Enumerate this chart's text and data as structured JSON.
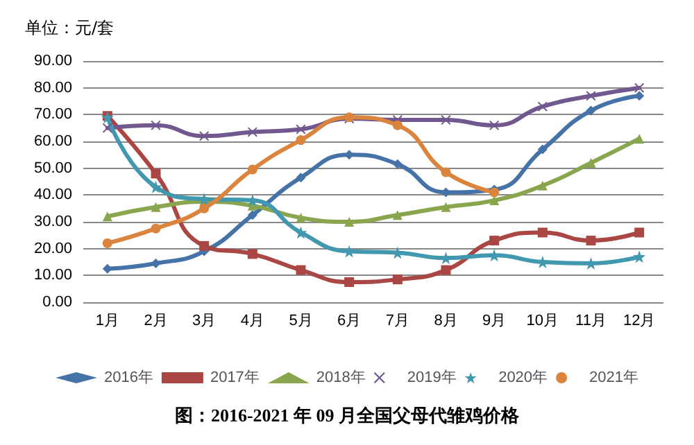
{
  "chart_data": {
    "type": "line",
    "title": "图：2016-2021 年 09 月全国父母代雏鸡价格",
    "annotations": [
      "单位：元/套"
    ],
    "categories": [
      "1月",
      "2月",
      "3月",
      "4月",
      "5月",
      "6月",
      "7月",
      "8月",
      "9月",
      "10月",
      "11月",
      "12月"
    ],
    "ylim": [
      0,
      90
    ],
    "yticks": [
      {
        "value": 0,
        "label": "0.00"
      },
      {
        "value": 10,
        "label": "10.00"
      },
      {
        "value": 20,
        "label": "20.00"
      },
      {
        "value": 30,
        "label": "30.00"
      },
      {
        "value": 40,
        "label": "40.00"
      },
      {
        "value": 50,
        "label": "50.00"
      },
      {
        "value": 60,
        "label": "60.00"
      },
      {
        "value": 70,
        "label": "70.00"
      },
      {
        "value": 80,
        "label": "80.00"
      },
      {
        "value": 90,
        "label": "90.00"
      }
    ],
    "grid": "y",
    "legend": "bottom",
    "series": [
      {
        "name": "2016年",
        "color": "#4572a7",
        "marker": "diamond",
        "values": [
          12.5,
          14.5,
          19,
          32.5,
          46.5,
          55,
          51.5,
          41,
          42,
          57,
          71.5,
          77
        ]
      },
      {
        "name": "2017年",
        "color": "#aa4643",
        "marker": "square",
        "values": [
          69.5,
          48,
          21,
          18,
          12,
          7.5,
          8.5,
          12,
          23,
          26,
          23,
          26
        ]
      },
      {
        "name": "2018年",
        "color": "#89a54e",
        "marker": "triangle",
        "values": [
          32,
          35.5,
          37.5,
          36,
          31.5,
          30,
          32.5,
          35.5,
          38,
          43.5,
          52,
          61
        ]
      },
      {
        "name": "2019年",
        "color": "#71588f",
        "marker": "cross",
        "values": [
          65,
          66,
          62,
          63.5,
          64.5,
          68.5,
          68,
          68,
          66,
          73,
          77,
          80
        ]
      },
      {
        "name": "2020年",
        "color": "#4198af",
        "marker": "star",
        "values": [
          69,
          43,
          38.5,
          38,
          26,
          19,
          18.5,
          16.5,
          17.5,
          15,
          14.5,
          17
        ]
      },
      {
        "name": "2021年",
        "color": "#db843d",
        "marker": "circle",
        "values": [
          22,
          27.5,
          35,
          49.5,
          60.5,
          69,
          66,
          48.5,
          41,
          null,
          null,
          null
        ]
      }
    ]
  }
}
